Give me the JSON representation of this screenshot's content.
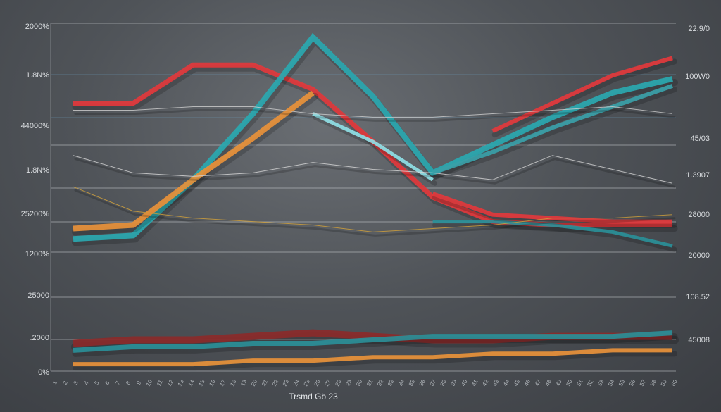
{
  "chart_data": {
    "type": "line",
    "xlabel": "Trsmd Gb 23",
    "y_left_ticks": [
      "2000%",
      "1.8N%",
      "44000%",
      "1.8N%",
      "25200%",
      "1200%",
      "25000",
      ".2000",
      "0%"
    ],
    "y_right_ticks": [
      "22.9/0",
      "100W0",
      "45/03",
      "1.3907",
      "28000",
      "20000",
      "108.52",
      "45008"
    ],
    "x_ticks": [
      "1",
      "2",
      "3",
      "4",
      "5",
      "6",
      "7",
      "8",
      "9",
      "10",
      "11",
      "12",
      "13",
      "14",
      "15",
      "16",
      "17",
      "18",
      "19",
      "20",
      "21",
      "22",
      "23",
      "24",
      "25",
      "26",
      "27",
      "28",
      "29",
      "30",
      "31",
      "32",
      "33",
      "34",
      "35",
      "36",
      "37",
      "38",
      "39",
      "40",
      "41",
      "42",
      "43",
      "44",
      "45",
      "46",
      "47",
      "48",
      "49",
      "50",
      "51",
      "52",
      "53",
      "54",
      "55",
      "56",
      "57",
      "58",
      "59",
      "60"
    ],
    "x": [
      0,
      10,
      20,
      30,
      40,
      50,
      60,
      70,
      80,
      90,
      100
    ],
    "ylim": [
      0,
      100
    ],
    "grid": true,
    "series": [
      {
        "color": "#e2383c",
        "width": 7,
        "values": [
          77,
          77,
          88,
          88,
          81,
          66,
          50,
          43,
          42,
          42,
          42
        ]
      },
      {
        "color": "#2aa8b0",
        "width": 8,
        "values": [
          38,
          39,
          55,
          74,
          96,
          79,
          57,
          65,
          73,
          80,
          84
        ]
      },
      {
        "color": "#e8913a",
        "width": 8,
        "values": [
          41,
          42,
          55,
          67,
          80,
          null,
          null,
          null,
          null,
          null,
          null
        ]
      },
      {
        "color": "#8fe0e6",
        "width": 5,
        "values": [
          null,
          null,
          null,
          null,
          74,
          66,
          55,
          null,
          null,
          null,
          null
        ]
      },
      {
        "color": "#e2383c",
        "width": 6,
        "values": [
          null,
          null,
          null,
          null,
          null,
          null,
          null,
          69,
          77,
          85,
          90
        ]
      },
      {
        "color": "#2a8f98",
        "width": 5,
        "values": [
          null,
          null,
          null,
          null,
          null,
          null,
          43,
          43,
          42,
          40,
          36
        ]
      },
      {
        "color": "#e2383c",
        "width": 6,
        "values": [
          null,
          null,
          null,
          null,
          null,
          null,
          51,
          45,
          44,
          43,
          43
        ]
      },
      {
        "color": "#3aa0a8",
        "width": 6,
        "values": [
          null,
          null,
          null,
          null,
          null,
          null,
          57,
          63,
          70,
          76,
          82
        ]
      },
      {
        "color": "#d8d8d8",
        "width": 1,
        "values": [
          62,
          57,
          56,
          57,
          60,
          58,
          57,
          55,
          62,
          58,
          54
        ]
      },
      {
        "color": "#cfcfcf",
        "width": 1,
        "values": [
          75,
          75,
          76,
          76,
          74,
          73,
          73,
          74,
          75,
          76,
          74
        ]
      },
      {
        "color": "#d4a23a",
        "width": 1,
        "values": [
          53,
          46,
          44,
          43,
          42,
          40,
          41,
          42,
          44,
          44,
          45
        ]
      },
      {
        "color": "#8b2a2a",
        "width": 10,
        "values": [
          8,
          9,
          9,
          10,
          11,
          10,
          9,
          9,
          10,
          10,
          10
        ]
      },
      {
        "color": "#2a8f98",
        "width": 7,
        "values": [
          6,
          7,
          7,
          8,
          8,
          9,
          10,
          10,
          10,
          10,
          11
        ]
      },
      {
        "color": "#e8913a",
        "width": 6,
        "values": [
          2,
          2,
          2,
          3,
          3,
          4,
          4,
          5,
          5,
          6,
          6
        ]
      }
    ]
  },
  "colors": {
    "background": "#4f5358",
    "grid": "#c9ccd0",
    "accent_grid": "#6fa6c8"
  }
}
